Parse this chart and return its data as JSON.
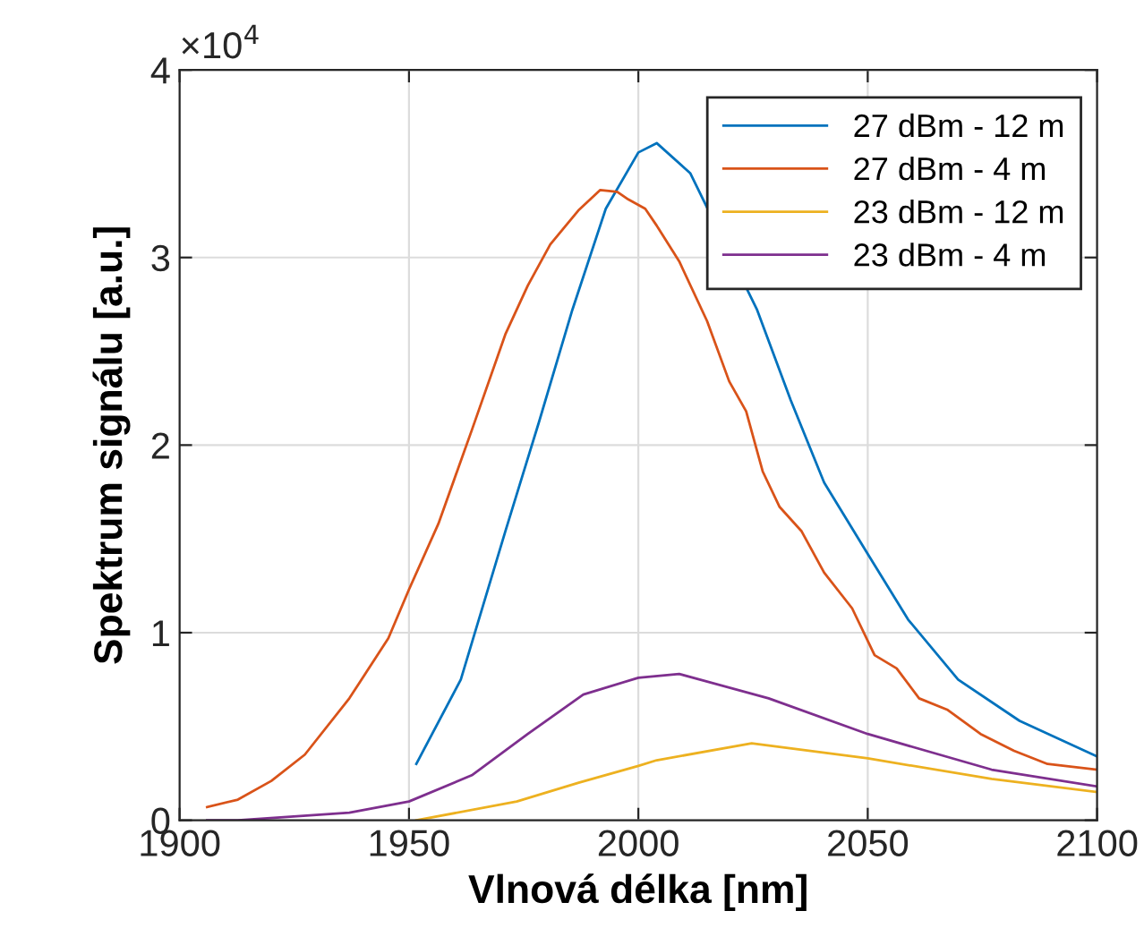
{
  "chart_data": {
    "type": "line",
    "xlabel": "Vlnová délka [nm]",
    "ylabel": "Spektrum signálu [a.u.]",
    "annotations": [
      "×10$^{4}$"
    ],
    "xlim": [
      1900,
      2100
    ],
    "xticks": [
      1900,
      1950,
      2000,
      2050,
      2100
    ],
    "ylim": [
      0,
      4
    ],
    "yticks": [
      0,
      1,
      2,
      3,
      4
    ],
    "grid": true,
    "legend": "top right",
    "line_style": "solid",
    "marker": "none",
    "series": [
      {
        "name": "27 dBm - 12 m",
        "color": "#0072bd",
        "x": [
          1951.6,
          1961.3,
          1971,
          1978.3,
          1985.6,
          1992.9,
          2000,
          2004,
          2011.3,
          2025.9,
          2033.2,
          2040.5,
          2050,
          2058.8,
          2069.7,
          2083.1,
          2100
        ],
        "values": [
          0.3,
          0.75,
          1.54,
          2.12,
          2.72,
          3.26,
          3.56,
          3.61,
          3.45,
          2.72,
          2.24,
          1.8,
          1.42,
          1.07,
          0.75,
          0.53,
          0.34
        ]
      },
      {
        "name": "27 dBm - 4 m",
        "color": "#d95319",
        "x": [
          1906,
          1912.7,
          1920,
          1927.3,
          1937,
          1945.5,
          1950,
          1956.4,
          1963.7,
          1971,
          1975.9,
          1980.8,
          1986.9,
          1991.7,
          1995.4,
          1997.8,
          2001.5,
          2004,
          2008.9,
          2015,
          2019.8,
          2023.5,
          2027.1,
          2030.8,
          2035.6,
          2040.5,
          2046.6,
          2051.5,
          2056.3,
          2061.2,
          2067.3,
          2074.6,
          2081.9,
          2089.2,
          2100
        ],
        "values": [
          0.07,
          0.11,
          0.21,
          0.35,
          0.65,
          0.97,
          1.23,
          1.58,
          2.08,
          2.59,
          2.85,
          3.07,
          3.25,
          3.36,
          3.35,
          3.31,
          3.26,
          3.17,
          2.98,
          2.66,
          2.34,
          2.18,
          1.86,
          1.67,
          1.54,
          1.32,
          1.13,
          0.88,
          0.81,
          0.65,
          0.59,
          0.46,
          0.37,
          0.3,
          0.27
        ]
      },
      {
        "name": "23 dBm - 12 m",
        "color": "#edb120",
        "x": [
          1951.6,
          1973.5,
          1987,
          2000,
          2004,
          2024.7,
          2050,
          2077,
          2100
        ],
        "values": [
          0,
          0.1,
          0.2,
          0.29,
          0.32,
          0.41,
          0.33,
          0.22,
          0.15
        ]
      },
      {
        "name": "23 dBm - 4 m",
        "color": "#7e2f8e",
        "x": [
          1906,
          1912.7,
          1937,
          1950,
          1963.7,
          1975.9,
          1988,
          2000,
          2008.9,
          2028.4,
          2050,
          2077,
          2100
        ],
        "values": [
          0,
          0,
          0.04,
          0.1,
          0.24,
          0.46,
          0.67,
          0.76,
          0.78,
          0.65,
          0.46,
          0.27,
          0.18
        ]
      }
    ]
  }
}
